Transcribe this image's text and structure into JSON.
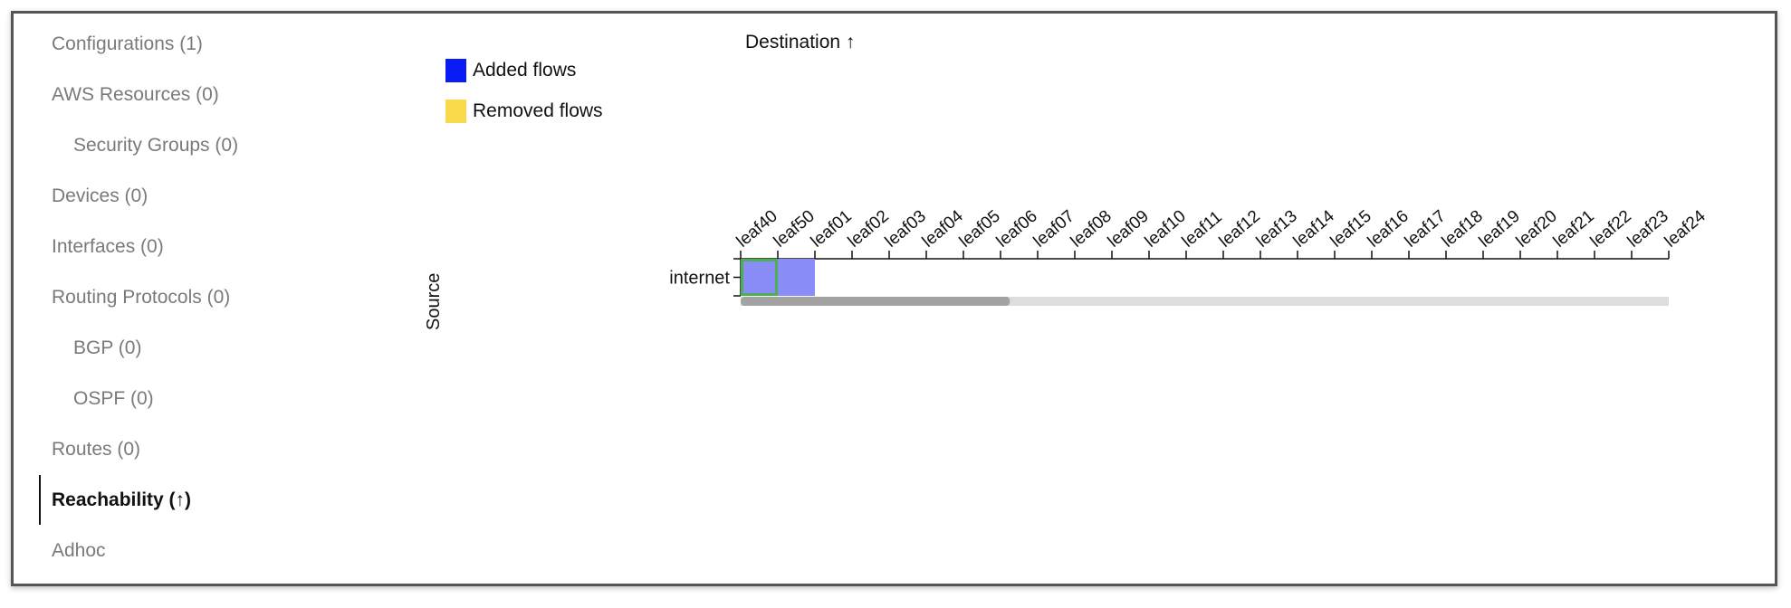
{
  "sidebar": {
    "items": [
      {
        "label": "Configurations (1)",
        "level": 0,
        "active": false
      },
      {
        "label": "AWS Resources (0)",
        "level": 0,
        "active": false
      },
      {
        "label": "Security Groups (0)",
        "level": 1,
        "active": false
      },
      {
        "label": "Devices (0)",
        "level": 0,
        "active": false
      },
      {
        "label": "Interfaces (0)",
        "level": 0,
        "active": false
      },
      {
        "label": "Routing Protocols (0)",
        "level": 0,
        "active": false
      },
      {
        "label": "BGP (0)",
        "level": 1,
        "active": false
      },
      {
        "label": "OSPF (0)",
        "level": 1,
        "active": false
      },
      {
        "label": "Routes (0)",
        "level": 0,
        "active": false
      },
      {
        "label": "Reachability (↑)",
        "level": 0,
        "active": true
      },
      {
        "label": "Adhoc",
        "level": 0,
        "active": false
      }
    ]
  },
  "legend": {
    "added": {
      "label": "Added flows",
      "color": "#0a1cf5"
    },
    "removed": {
      "label": "Removed flows",
      "color": "#fad94a"
    }
  },
  "axes": {
    "destination_label": "Destination ↑",
    "source_label": "Source"
  },
  "chart_data": {
    "type": "heatmap",
    "rows": [
      "internet"
    ],
    "columns": [
      "leaf40",
      "leaf50",
      "leaf01",
      "leaf02",
      "leaf03",
      "leaf04",
      "leaf05",
      "leaf06",
      "leaf07",
      "leaf08",
      "leaf09",
      "leaf10",
      "leaf11",
      "leaf12",
      "leaf13",
      "leaf14",
      "leaf15",
      "leaf16",
      "leaf17",
      "leaf18",
      "leaf19",
      "leaf20",
      "leaf21",
      "leaf22",
      "leaf23",
      "leaf24"
    ],
    "cells": [
      {
        "row": "internet",
        "column": "leaf40",
        "status": "added",
        "selected": true
      },
      {
        "row": "internet",
        "column": "leaf50",
        "status": "added",
        "selected": false
      }
    ],
    "cell_color": "#8a8cf8",
    "selection_color": "#4caf50",
    "scrollbar": {
      "visible_fraction": 0.29
    }
  }
}
